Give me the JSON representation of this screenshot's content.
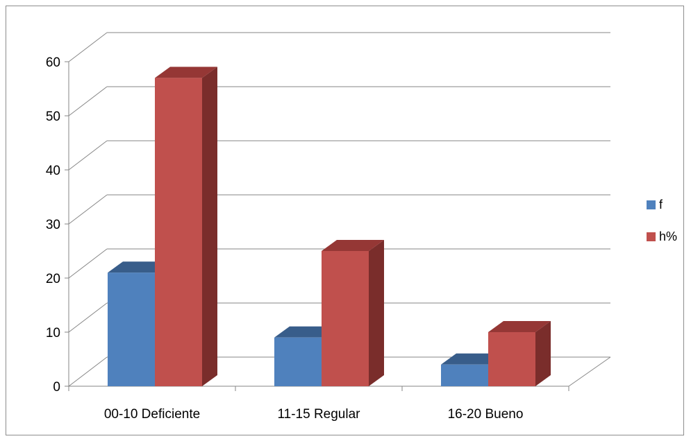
{
  "chart_data": {
    "type": "bar",
    "categories": [
      "00-10 Deficiente",
      "11-15 Regular",
      "16-20 Bueno"
    ],
    "series": [
      {
        "name": "f",
        "values": [
          21,
          9,
          4
        ],
        "color": "#4F81BD",
        "top_color": "#385D8A",
        "side_color": "#2F4F78"
      },
      {
        "name": "h%",
        "values": [
          57,
          25,
          10
        ],
        "color": "#C0504D",
        "top_color": "#953735",
        "side_color": "#7A2D2B"
      }
    ],
    "ylim": [
      0,
      60
    ],
    "yticks": [
      "0",
      "10",
      "20",
      "30",
      "40",
      "50",
      "60"
    ],
    "grid": true,
    "legend": "right",
    "title": "",
    "xlabel": "",
    "ylabel": ""
  }
}
